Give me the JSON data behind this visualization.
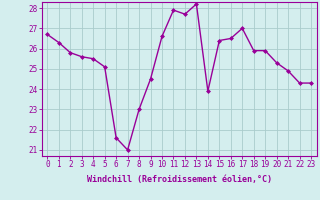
{
  "x": [
    0,
    1,
    2,
    3,
    4,
    5,
    6,
    7,
    8,
    9,
    10,
    11,
    12,
    13,
    14,
    15,
    16,
    17,
    18,
    19,
    20,
    21,
    22,
    23
  ],
  "y": [
    26.7,
    26.3,
    25.8,
    25.6,
    25.5,
    25.1,
    21.6,
    21.0,
    23.0,
    24.5,
    26.6,
    27.9,
    27.7,
    28.2,
    23.9,
    26.4,
    26.5,
    27.0,
    25.9,
    25.9,
    25.3,
    24.9,
    24.3,
    24.3
  ],
  "line_color": "#990099",
  "marker": "D",
  "marker_size": 2,
  "background_color": "#d4eeee",
  "grid_color": "#aacccc",
  "xlabel": "Windchill (Refroidissement éolien,°C)",
  "xlabel_color": "#990099",
  "tick_color": "#990099",
  "ylim_min": 20.7,
  "ylim_max": 28.3,
  "xlim_min": -0.5,
  "xlim_max": 23.5,
  "yticks": [
    21,
    22,
    23,
    24,
    25,
    26,
    27,
    28
  ],
  "xticks": [
    0,
    1,
    2,
    3,
    4,
    5,
    6,
    7,
    8,
    9,
    10,
    11,
    12,
    13,
    14,
    15,
    16,
    17,
    18,
    19,
    20,
    21,
    22,
    23
  ],
  "xtick_labels": [
    "0",
    "1",
    "2",
    "3",
    "4",
    "5",
    "6",
    "7",
    "8",
    "9",
    "10",
    "11",
    "12",
    "13",
    "14",
    "15",
    "16",
    "17",
    "18",
    "19",
    "20",
    "21",
    "22",
    "23"
  ],
  "tick_fontsize": 5.5,
  "xlabel_fontsize": 6.0,
  "linewidth": 1.0,
  "spine_color": "#990099"
}
